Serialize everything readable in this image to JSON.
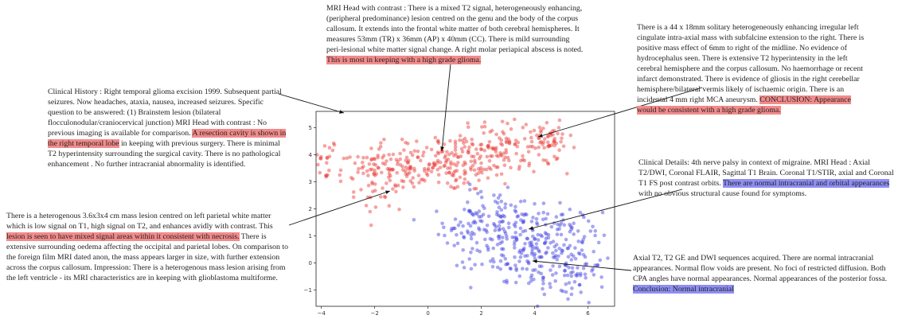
{
  "chart_data": {
    "type": "scatter",
    "title": "",
    "xlabel": "",
    "ylabel": "",
    "xlim": [
      -4.2,
      7.0
    ],
    "ylim": [
      -1.6,
      5.6
    ],
    "xticks": [
      -4,
      -2,
      0,
      2,
      4,
      6
    ],
    "yticks": [
      -1,
      0,
      1,
      2,
      3,
      4,
      5
    ],
    "series": [
      {
        "color": "#e8342e",
        "alpha": 0.45,
        "clusters": [
          {
            "cx": 0.5,
            "cy": 3.7,
            "sx": 1.7,
            "sy": 0.55,
            "n": 230
          },
          {
            "cx": -2.2,
            "cy": 3.4,
            "sx": 0.9,
            "sy": 0.5,
            "n": 60
          },
          {
            "cx": 3.0,
            "cy": 4.3,
            "sx": 1.0,
            "sy": 0.5,
            "n": 90
          },
          {
            "cx": 4.5,
            "cy": 4.55,
            "sx": 0.35,
            "sy": 0.25,
            "n": 40
          },
          {
            "cx": -3.7,
            "cy": 4.0,
            "sx": 0.15,
            "sy": 0.35,
            "n": 10
          },
          {
            "cx": -1.8,
            "cy": 2.4,
            "sx": 0.4,
            "sy": 0.2,
            "n": 14
          }
        ]
      },
      {
        "color": "#3a3ae0",
        "alpha": 0.45,
        "clusters": [
          {
            "cx": 4.1,
            "cy": 0.6,
            "sx": 1.2,
            "sy": 0.8,
            "n": 260
          },
          {
            "cx": 2.4,
            "cy": 1.7,
            "sx": 0.8,
            "sy": 0.5,
            "n": 70
          },
          {
            "cx": 5.4,
            "cy": -0.5,
            "sx": 0.5,
            "sy": 0.6,
            "n": 50
          },
          {
            "cx": 1.0,
            "cy": 1.2,
            "sx": 0.6,
            "sy": 0.4,
            "n": 25
          }
        ]
      }
    ]
  },
  "notes": {
    "n1": {
      "pre": "MRI Head with contrast :   There is a mixed T2 signal, heterogeneously enhancing, (peripheral predominance) lesion centred on the genu and the body of the corpus callosum.  It extends into the frontal white matter of both cerebral hemispheres.  It measures 53mm (TR) x 36mm (AP) x 40mm (CC).  There is mild surrounding peri-lesional white matter signal change.  A right molar periapical abscess is noted. ",
      "hl": "This is most in keeping with a high grade glioma.",
      "post": ""
    },
    "n2": {
      "pre": "There is a 44 x 18mm solitary heterogeneously enhancing irregular left cingulate  intra-axial mass with subfalcine extension to the right. There is positive mass effect of 6mm to right of the midline. No evidence of hydrocephalus seen. There is extensive T2 hyperintensity in the left cerebral hemisphere and  the corpus callosum.  No haemorrhage or recent infarct demonstrated. There is evidence of gliosis in the right cerebellar hemisphere/bilateral vermis likely of ischaemic origin. There is an incidental  4 mm right MCA aneurysm.  ",
      "hl": "CONCLUSION: Appearance would be consistent with a high grade glioma.",
      "post": ""
    },
    "n3": {
      "pre": "Clinical History : Right temporal glioma excision 1999. Subsequent partial seizures.  Now headaches, ataxia, nausea, increased seizures. Specific question to be answered: (1) Brainstem lesion (bilateral flocculonodular/craniocervical junction)\nMRI Head with contrast :   No previous imaging is available for comparison.  ",
      "hl": "A resection cavity is shown in the right temporal lobe",
      "post": " in keeping with previous surgery. There is minimal T2 hyperintensity surrounding the surgical cavity.  There is no pathological enhancement . No further intracranial abnormality is identified."
    },
    "n4": {
      "pre": "Clinical Details: 4th nerve palsy in context of migraine.\nMRI Head :   Axial T2/DWI, Coronal FLAIR, Sagittal T1 Brain. Coronal T1/STIR, axial and Coronal T1 FS post contrast orbits. ",
      "hl": "There are normal intracranial and orbital appearances",
      "post": " with no obvious structural cause found for symptoms."
    },
    "n5": {
      "pre": " There is a heterogenous 3.6x3x4 cm mass lesion centred on left parietal white matter which is low signal on T1, high signal on T2, and enhances avidly with contrast. This ",
      "hl": "lesion is seen to have mixed signal areas within it consistent with necrosis.",
      "post": " There is extensive surrounding oedema affecting the occipital and parietal lobes.  On comparison to the foreign film MRI dated anon, the mass appears larger in size, with further extension across the corpus callosum.\nImpression:  There is a heterogenous mass lesion arising from the left ventricle - its MRI characteristics are in keeping with glioblastoma multiforme."
    },
    "n6": {
      "pre": "Axial T2, T2 GE and DWI sequences acquired.  There are normal intracranial appearances.  Normal flow voids are present. No foci of restricted diffusion. Both CPA angles have normal appearances.  Normal appearances of the posterior fossa.  ",
      "hl": "Conclusion: Normal intracranial",
      "post": ""
    }
  }
}
